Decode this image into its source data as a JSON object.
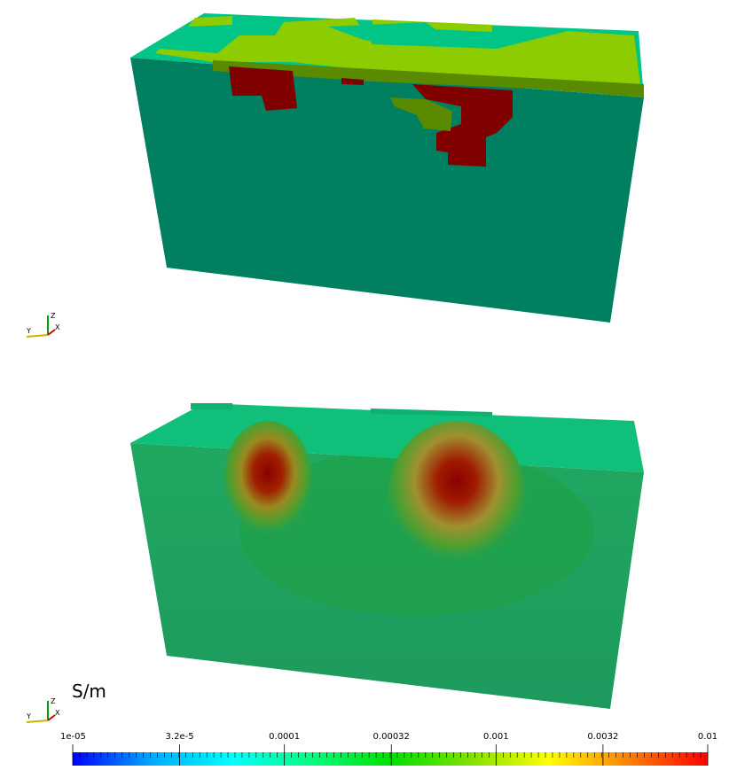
{
  "views": [
    {
      "name": "true-model-view"
    },
    {
      "name": "recovered-model-view"
    }
  ],
  "axes": {
    "z": "Z",
    "y": "Y",
    "x": "X"
  },
  "colorbar": {
    "unit": "S/m",
    "scale": "log",
    "range": [
      1e-05,
      0.01
    ],
    "tick_labels": [
      "1e-05",
      "3.2e-5",
      "0.0001",
      "0.00032",
      "0.001",
      "0.0032",
      "0.01"
    ],
    "colors": [
      "#0000ff",
      "#00aaff",
      "#00ffff",
      "#00ff80",
      "#00e000",
      "#80e000",
      "#ffff00",
      "#ff8000",
      "#ff0000"
    ]
  }
}
